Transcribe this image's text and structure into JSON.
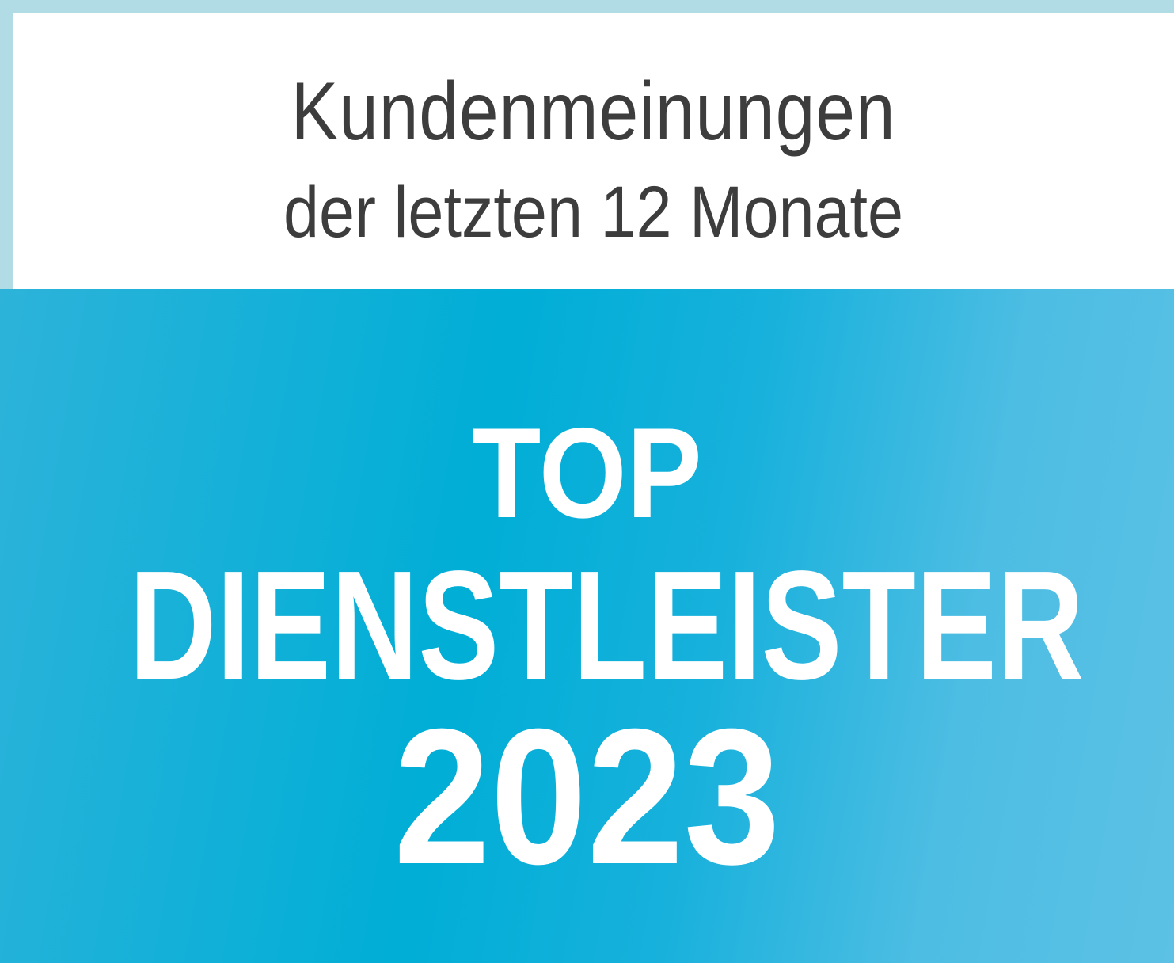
{
  "header": {
    "line1": "Kundenmeinungen",
    "line2": "der letzten 12 Monate"
  },
  "badge": {
    "line1": "TOP",
    "line2": "DIENSTLEISTER",
    "line3": "2023"
  },
  "colors": {
    "frame": "#b2dce5",
    "background_blue": "#00aed6",
    "text_dark": "#3d3d3d",
    "text_light": "#ffffff"
  }
}
